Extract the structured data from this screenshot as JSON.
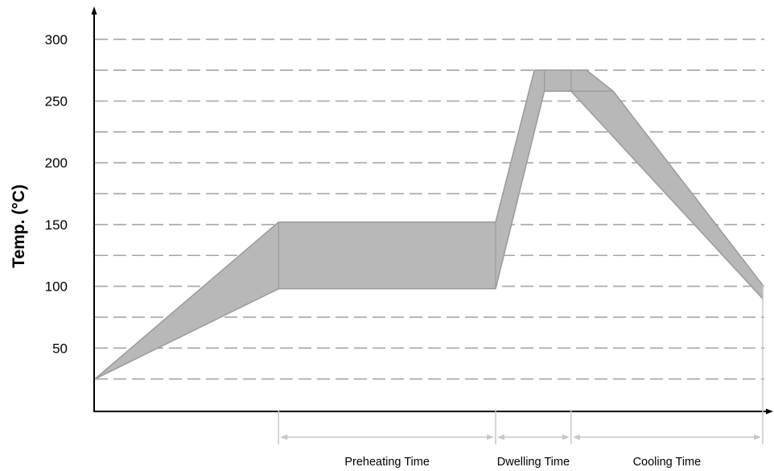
{
  "chart_data": {
    "type": "area",
    "title": "",
    "xlabel": "",
    "ylabel": "Temp. (°C)",
    "y_ticks": [
      50,
      100,
      150,
      200,
      250,
      300
    ],
    "y_gridlines": [
      25,
      50,
      75,
      100,
      125,
      150,
      175,
      200,
      225,
      250,
      275,
      300
    ],
    "ylim": [
      0,
      310
    ],
    "grid": true,
    "grid_style": "dashed",
    "band": {
      "upper": [
        {
          "t": 0,
          "temp": 25
        },
        {
          "t": 0.275,
          "temp": 152
        },
        {
          "t": 0.6,
          "temp": 152
        },
        {
          "t": 0.658,
          "temp": 275
        },
        {
          "t": 0.736,
          "temp": 275
        },
        {
          "t": 0.776,
          "temp": 258
        },
        {
          "t": 1.0,
          "temp": 101
        }
      ],
      "lower": [
        {
          "t": 0,
          "temp": 25
        },
        {
          "t": 0.275,
          "temp": 98
        },
        {
          "t": 0.6,
          "temp": 98
        },
        {
          "t": 0.673,
          "temp": 258
        },
        {
          "t": 0.713,
          "temp": 258
        },
        {
          "t": 1.0,
          "temp": 90
        }
      ]
    },
    "phases": [
      {
        "label": "Preheating Time",
        "t_start": 0.275,
        "t_end": 0.6
      },
      {
        "label": "Dwelling Time",
        "t_start": 0.6,
        "t_end": 0.713
      },
      {
        "label": "Cooling Time",
        "t_start": 0.713,
        "t_end": 1.0
      }
    ],
    "colors": {
      "band_fill": "#b8b8b8",
      "band_edge": "#9a9a9a",
      "grid": "#a6a6a6",
      "axis": "#000000",
      "marker": "#c8c8c8"
    }
  }
}
